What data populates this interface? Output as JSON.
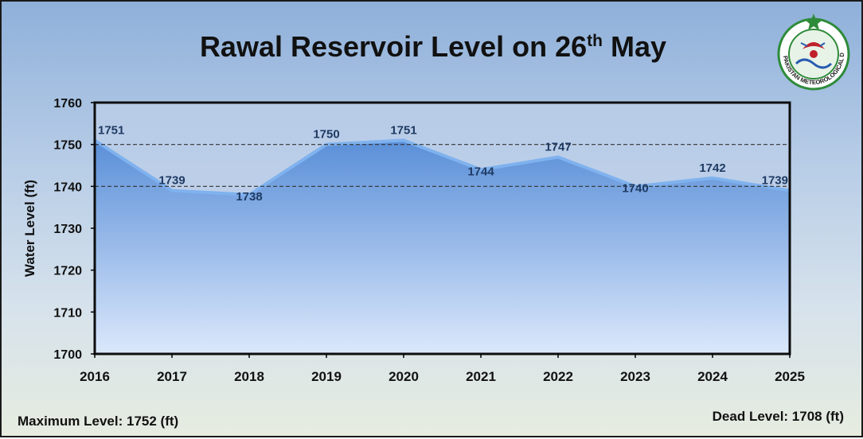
{
  "title": {
    "main": "Rawal Reservoir Level on 26",
    "sup": "th",
    "tail": "May"
  },
  "footer": {
    "maximum_level": "Maximum Level: 1752 (ft)",
    "dead_level": "Dead Level: 1708 (ft)"
  },
  "logo": {
    "icon": "pmd-logo-icon",
    "text": "PAKISTAN METEOROLOGICAL DEPARTMENT",
    "colors": {
      "ring": "#2e8b3a",
      "red": "#c0202a",
      "blue": "#2a5db0"
    }
  },
  "colors": {
    "area_top": "#5a8fd8",
    "area_bottom": "#dbe8fb",
    "line": "#7fb2ee",
    "label_text": "#1f3b63",
    "plot_border": "#0d0d0d"
  },
  "chart_data": {
    "type": "area",
    "title": "Rawal Reservoir Level on 26th May",
    "xlabel": "",
    "ylabel": "Water Level (ft)",
    "x": [
      "2016",
      "2017",
      "2018",
      "2019",
      "2020",
      "2021",
      "2022",
      "2023",
      "2024",
      "2025"
    ],
    "values": [
      1751,
      1739,
      1738,
      1750,
      1751,
      1744,
      1747,
      1740,
      1742,
      1739
    ],
    "ylim": [
      1700,
      1760
    ],
    "yticks": [
      1700,
      1710,
      1720,
      1730,
      1740,
      1750,
      1760
    ],
    "reference_lines": [
      1750,
      1740
    ],
    "grid": false,
    "legend": "none"
  }
}
